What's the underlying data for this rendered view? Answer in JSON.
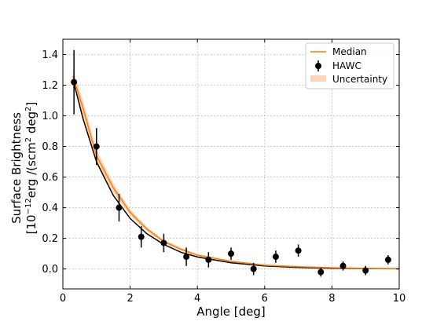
{
  "chart_data": {
    "type": "scatter",
    "title": "",
    "xlabel": "Angle [deg]",
    "ylabel_line1": "Surface Brightness",
    "ylabel_line2_parts": {
      "a": "[10",
      "exp1": "−12",
      "b": "erg /(scm",
      "exp2": "2",
      "c": " deg",
      "exp3": "2",
      "d": "]"
    },
    "xlim": [
      0,
      10
    ],
    "ylim": [
      -0.13,
      1.5
    ],
    "xticks": [
      0,
      2,
      4,
      6,
      8,
      10
    ],
    "xtick_labels": [
      "0",
      "2",
      "4",
      "6",
      "8",
      "10"
    ],
    "yticks": [
      0.0,
      0.2,
      0.4,
      0.6,
      0.8,
      1.0,
      1.2,
      1.4
    ],
    "ytick_labels": [
      "0.0",
      "0.2",
      "0.4",
      "0.6",
      "0.8",
      "1.0",
      "1.2",
      "1.4"
    ],
    "grid": true,
    "legend_position": "top-right",
    "legend": [
      {
        "label": "Median",
        "kind": "line",
        "color": "#ff7f0e"
      },
      {
        "label": "HAWC",
        "kind": "errorbar",
        "color": "#000000"
      },
      {
        "label": "Uncertainty",
        "kind": "band",
        "color": "#fdd7b5"
      }
    ],
    "series": [
      {
        "name": "HAWC",
        "color": "#000000",
        "points": [
          {
            "x": 0.33,
            "y": 1.22,
            "err": 0.21
          },
          {
            "x": 1.0,
            "y": 0.8,
            "err": 0.12
          },
          {
            "x": 1.67,
            "y": 0.4,
            "err": 0.09
          },
          {
            "x": 2.33,
            "y": 0.21,
            "err": 0.07
          },
          {
            "x": 3.0,
            "y": 0.17,
            "err": 0.06
          },
          {
            "x": 3.67,
            "y": 0.08,
            "err": 0.06
          },
          {
            "x": 4.33,
            "y": 0.06,
            "err": 0.05
          },
          {
            "x": 5.0,
            "y": 0.1,
            "err": 0.04
          },
          {
            "x": 5.67,
            "y": 0.0,
            "err": 0.04
          },
          {
            "x": 6.33,
            "y": 0.08,
            "err": 0.04
          },
          {
            "x": 7.0,
            "y": 0.12,
            "err": 0.04
          },
          {
            "x": 7.67,
            "y": -0.02,
            "err": 0.03
          },
          {
            "x": 8.33,
            "y": 0.02,
            "err": 0.03
          },
          {
            "x": 9.0,
            "y": -0.01,
            "err": 0.03
          },
          {
            "x": 9.67,
            "y": 0.06,
            "err": 0.03
          }
        ]
      },
      {
        "name": "Median",
        "color": "#ff7f0e",
        "x": [
          0.3,
          0.6,
          1.0,
          1.5,
          2.0,
          2.5,
          3.0,
          3.5,
          4.0,
          5.0,
          6.0,
          7.0,
          8.0,
          9.0,
          10.0
        ],
        "y": [
          1.26,
          1.05,
          0.74,
          0.53,
          0.37,
          0.26,
          0.18,
          0.13,
          0.09,
          0.05,
          0.025,
          0.015,
          0.008,
          0.004,
          0.002
        ]
      },
      {
        "name": "Uncertainty",
        "color": "#fdd7b5",
        "x": [
          0.3,
          0.6,
          1.0,
          1.5,
          2.0,
          2.5,
          3.0,
          3.5,
          4.0,
          5.0,
          6.0,
          7.0,
          8.0,
          9.0,
          10.0
        ],
        "y_low": [
          1.21,
          1.0,
          0.7,
          0.5,
          0.35,
          0.245,
          0.17,
          0.12,
          0.083,
          0.045,
          0.022,
          0.012,
          0.006,
          0.003,
          0.001
        ],
        "y_high": [
          1.31,
          1.1,
          0.78,
          0.56,
          0.39,
          0.275,
          0.19,
          0.14,
          0.097,
          0.055,
          0.028,
          0.018,
          0.01,
          0.005,
          0.003
        ]
      },
      {
        "color": "#000000",
        "x": [
          0.3,
          0.6,
          1.0,
          1.5,
          2.0,
          2.5,
          3.0,
          3.5,
          4.0,
          5.0,
          6.0,
          7.0,
          8.0,
          9.0,
          10.0
        ],
        "y": [
          1.24,
          0.98,
          0.7,
          0.48,
          0.33,
          0.23,
          0.16,
          0.11,
          0.078,
          0.04,
          0.02,
          0.01,
          0.005,
          0.003,
          0.001
        ]
      }
    ]
  }
}
